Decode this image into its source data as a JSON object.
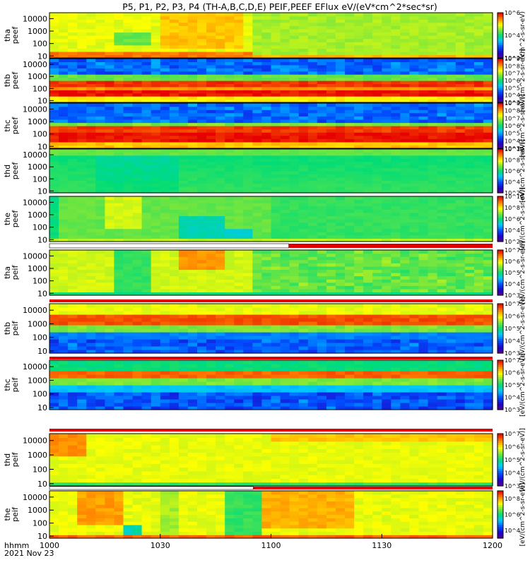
{
  "title": "P5, P1, P2, P3, P4 (TH-A,B,C,D,E) PEIF,PEEF EFlux eV/(eV*cm^2*sec*sr)",
  "x_axis": {
    "label_line1": "hhmm",
    "label_line2": "2021 Nov 23",
    "ticks": [
      "1000",
      "1030",
      "1100",
      "1130",
      "1200"
    ]
  },
  "colors": {
    "axis": "#000000",
    "bar_red": "#e00000",
    "background": "#ffffff"
  },
  "chart_data": {
    "type": "heatmap",
    "x_range": [
      "10:00",
      "12:00"
    ],
    "y_scale": "log",
    "y_range_eV": [
      7,
      30000
    ],
    "panels": [
      {
        "id": "tha-peef",
        "label1": "tha",
        "label2": "peef",
        "yticks": [
          "10",
          "100",
          "1000",
          "10000"
        ],
        "cb_ticks": [
          "10^2",
          "10^4",
          "10^6"
        ],
        "cb_range_exp": [
          2,
          6
        ],
        "cb_text": "(cm^2-s-sr-eV)"
      },
      {
        "id": "thb-peef",
        "label1": "thb",
        "label2": "peef",
        "yticks": [
          "10",
          "100",
          "1000",
          "10000"
        ],
        "cb_ticks": [
          "10^3",
          "10^4",
          "10^5",
          "10^6",
          "10^7",
          "10^8",
          "10^9"
        ],
        "cb_range_exp": [
          3,
          9
        ],
        "cb_text": "[eV/(cm^2-s-sr-eV)]"
      },
      {
        "id": "thc-peef",
        "label1": "thc",
        "label2": "peef",
        "yticks": [
          "10",
          "100",
          "1000",
          "10000"
        ],
        "cb_ticks": [
          "10^3",
          "10^4",
          "10^5",
          "10^6",
          "10^7",
          "10^8",
          "10^9"
        ],
        "cb_range_exp": [
          3,
          9
        ],
        "cb_text": "[eV/(cm^2-s-sr-eV)]"
      },
      {
        "id": "thd-peef",
        "label1": "thd",
        "label2": "peef",
        "yticks": [
          "10",
          "100",
          "1000",
          "10000"
        ],
        "cb_ticks": [
          "10^2",
          "10^4",
          "10^6",
          "10^8",
          "10^10"
        ],
        "cb_range_exp": [
          2,
          10
        ],
        "cb_text": "[eV/(cm^2-s-sr-eV)]"
      },
      {
        "id": "the-peef",
        "label1": "the",
        "label2": "peef",
        "yticks": [
          "10",
          "100",
          "1000",
          "10000"
        ],
        "cb_ticks": [
          "10^2",
          "10^4",
          "10^6",
          "10^8",
          "10^10"
        ],
        "cb_range_exp": [
          2,
          10
        ],
        "cb_text": "[eV/(cm^2-s-sr-eV)]"
      },
      {
        "id": "tha-peif",
        "label1": "tha",
        "label2": "peif",
        "yticks": [
          "10",
          "100",
          "1000",
          "10000"
        ],
        "cb_ticks": [
          "10^3",
          "10^4",
          "10^5",
          "10^6",
          "10^7"
        ],
        "cb_range_exp": [
          3,
          7
        ],
        "cb_text": "[eV/(cm^2-s-sr-eV)]"
      },
      {
        "id": "thb-peif",
        "label1": "thb",
        "label2": "peif",
        "yticks": [
          "10",
          "100",
          "1000",
          "10000"
        ],
        "cb_ticks": [
          "10^3",
          "10^4",
          "10^5",
          "10^6",
          "10^7"
        ],
        "cb_range_exp": [
          3,
          7
        ],
        "cb_text": "[eV/(cm^2-s-sr-eV)]"
      },
      {
        "id": "thc-peif",
        "label1": "thc",
        "label2": "peif",
        "yticks": [
          "10",
          "100",
          "1000",
          "10000"
        ],
        "cb_ticks": [
          "10^3",
          "10^4",
          "10^5",
          "10^6",
          "10^7"
        ],
        "cb_range_exp": [
          3,
          7
        ],
        "cb_text": "[eV/(cm^2-s-sr-eV)]"
      },
      {
        "id": "thd-peif",
        "label1": "thd",
        "label2": "peif",
        "yticks": [
          "10",
          "100",
          "1000",
          "10000"
        ],
        "cb_ticks": [
          "10^3",
          "10^4",
          "10^5",
          "10^6",
          "10^7"
        ],
        "cb_range_exp": [
          3,
          7
        ],
        "cb_text": "[eV/(cm^2-s-sr-eV)]"
      },
      {
        "id": "the-peif",
        "label1": "the",
        "label2": "peif",
        "yticks": [
          "10",
          "100",
          "1000",
          "10000"
        ],
        "cb_ticks": [
          "10^4",
          "10^6",
          "10^8"
        ],
        "cb_range_exp": [
          3,
          9
        ],
        "cb_text": "[eV/(cm^2-s-sr-eV)]"
      }
    ]
  }
}
